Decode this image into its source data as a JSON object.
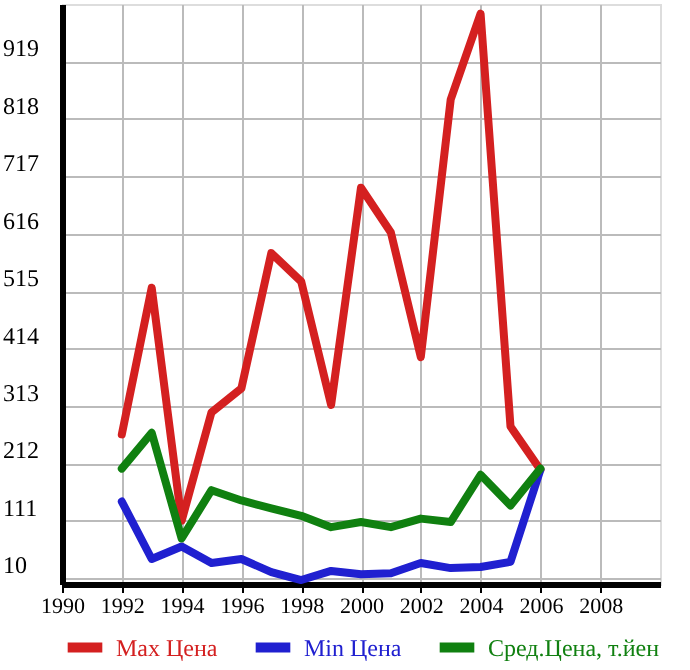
{
  "chart_data": {
    "type": "line",
    "x": [
      1992,
      1993,
      1994,
      1995,
      1996,
      1997,
      1998,
      1999,
      2000,
      2001,
      2002,
      2003,
      2004,
      2005,
      2006
    ],
    "series": [
      {
        "name": "Max Цена",
        "color": "#d42020",
        "values": [
          263,
          521,
          111,
          302,
          344,
          582,
          532,
          315,
          697,
          618,
          399,
          852,
          1003,
          277,
          201
        ]
      },
      {
        "name": "Min Цена",
        "color": "#2020d0",
        "values": [
          145,
          44,
          66,
          37,
          44,
          21,
          7,
          23,
          17,
          19,
          37,
          28,
          30,
          39,
          201
        ]
      },
      {
        "name": "Сред.Цена, т.йен",
        "color": "#108010",
        "values": [
          203,
          266,
          80,
          165,
          147,
          133,
          120,
          100,
          109,
          100,
          115,
          109,
          192,
          138,
          203
        ]
      }
    ],
    "xlim": [
      1990,
      2010
    ],
    "xticks": [
      1990,
      1992,
      1994,
      1996,
      1998,
      2000,
      2002,
      2004,
      2006,
      2008
    ],
    "ylim": [
      0,
      1020
    ],
    "yticks": [
      10,
      111,
      212,
      313,
      414,
      515,
      616,
      717,
      818,
      919
    ],
    "grid": true,
    "legend": "bottom",
    "marker": "none",
    "line_style": "solid"
  }
}
